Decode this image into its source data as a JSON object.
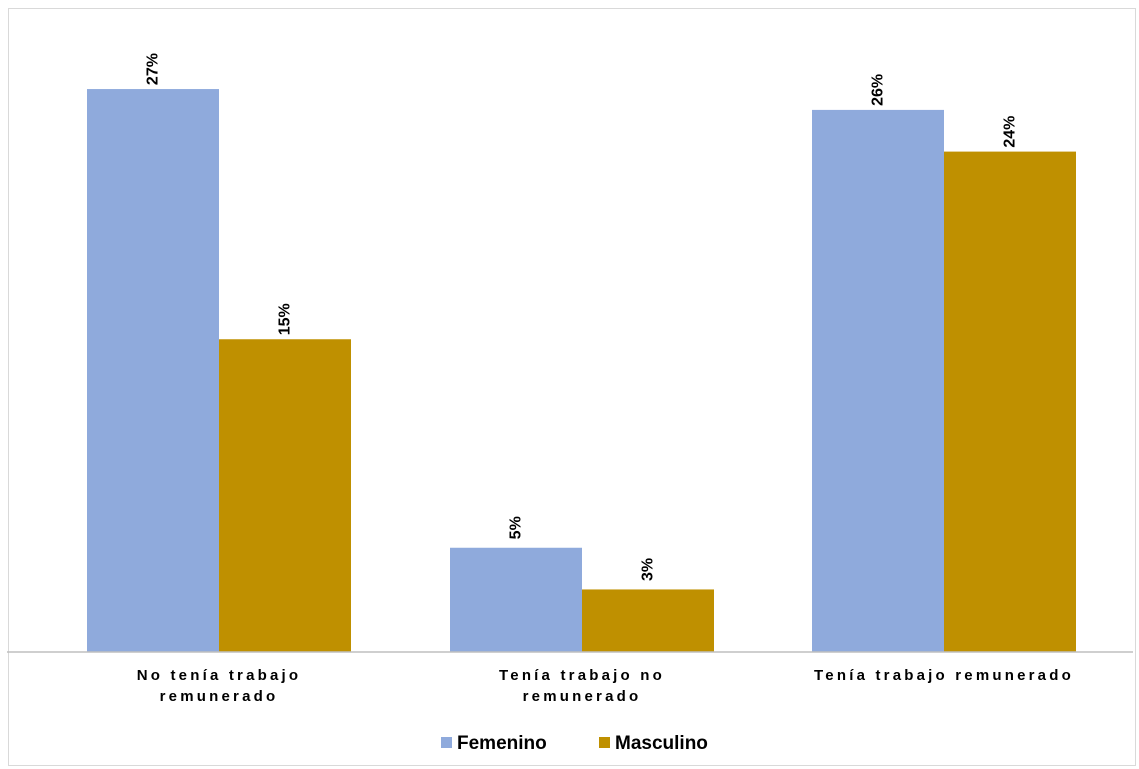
{
  "chart_data": {
    "type": "bar",
    "categories": [
      [
        "No tenía  trabajo",
        "remunerado"
      ],
      [
        "Tenía trabajo no",
        "remunerado"
      ],
      [
        "Tenía trabajo remunerado"
      ]
    ],
    "series": [
      {
        "name": "Femenino",
        "values": [
          27,
          5,
          26
        ],
        "labels": [
          "27%",
          "5%",
          "26%"
        ],
        "color": "#8faadc"
      },
      {
        "name": "Masculino",
        "values": [
          15,
          3,
          24
        ],
        "labels": [
          "15%",
          "3%",
          "24%"
        ],
        "color": "#bf9000"
      }
    ],
    "value_format": "percent",
    "ylim": [
      0,
      30
    ],
    "grid": false,
    "axis_line_color": "#bfbfbf",
    "legend_position": "bottom"
  }
}
